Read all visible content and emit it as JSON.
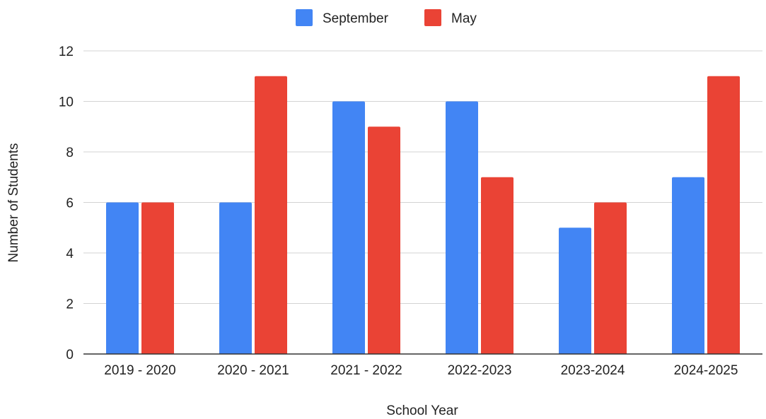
{
  "chart_data": {
    "type": "bar",
    "title": "",
    "xlabel": "School Year",
    "ylabel": "Number of Students",
    "categories": [
      "2019 - 2020",
      "2020 - 2021",
      "2021 - 2022",
      "2022-2023",
      "2023-2024",
      "2024-2025"
    ],
    "series": [
      {
        "name": "September",
        "color": "#4285f4",
        "values": [
          6,
          6,
          10,
          10,
          5,
          7
        ]
      },
      {
        "name": "May",
        "color": "#ea4335",
        "values": [
          6,
          11,
          9,
          7,
          6,
          11
        ]
      }
    ],
    "ylim": [
      0,
      12
    ],
    "yticks": [
      "0",
      "2",
      "4",
      "6",
      "8",
      "10",
      "12"
    ],
    "grid": true,
    "legend_position": "top-center"
  }
}
